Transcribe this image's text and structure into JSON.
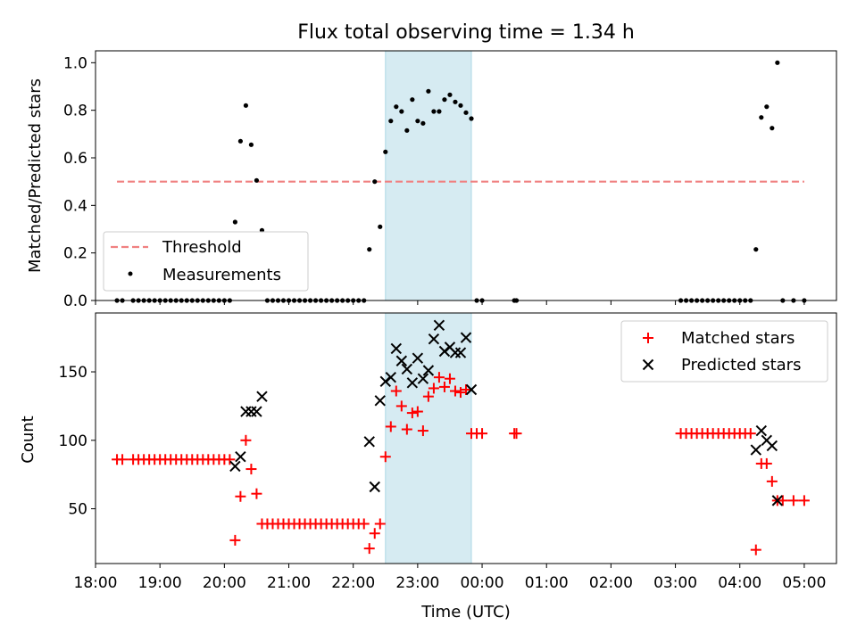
{
  "chart_data": [
    {
      "type": "scatter",
      "title": "Flux total observing time = 1.34 h",
      "xlabel": "",
      "ylabel": "Matched/Predicted stars",
      "xlim": [
        "18:00",
        "05:30"
      ],
      "ylim": [
        0,
        1.05
      ],
      "y_ticks": [
        "0.0",
        "0.2",
        "0.4",
        "0.6",
        "0.8",
        "1.0"
      ],
      "grid": false,
      "legend_position": "lower-left",
      "highlight_span": {
        "start": "22:30",
        "end": "23:50",
        "color": "#add8e6"
      },
      "threshold": {
        "name": "Threshold",
        "value": 0.5,
        "x_start": "18:20",
        "x_end": "05:00",
        "color": "#f08080"
      },
      "series": [
        {
          "name": "Measurements",
          "color": "#000000",
          "points": [
            [
              "18:20",
              0
            ],
            [
              "18:25",
              0
            ],
            [
              "18:35",
              0
            ],
            [
              "18:40",
              0
            ],
            [
              "18:45",
              0
            ],
            [
              "18:50",
              0
            ],
            [
              "18:55",
              0
            ],
            [
              "19:00",
              0
            ],
            [
              "19:05",
              0
            ],
            [
              "19:10",
              0
            ],
            [
              "19:15",
              0
            ],
            [
              "19:20",
              0
            ],
            [
              "19:25",
              0
            ],
            [
              "19:30",
              0
            ],
            [
              "19:35",
              0
            ],
            [
              "19:40",
              0
            ],
            [
              "19:45",
              0
            ],
            [
              "19:50",
              0
            ],
            [
              "19:55",
              0
            ],
            [
              "20:00",
              0
            ],
            [
              "20:05",
              0
            ],
            [
              "20:10",
              0.33
            ],
            [
              "20:15",
              0.67
            ],
            [
              "20:20",
              0.82
            ],
            [
              "20:25",
              0.655
            ],
            [
              "20:30",
              0.505
            ],
            [
              "20:35",
              0.295
            ],
            [
              "20:40",
              0
            ],
            [
              "20:45",
              0
            ],
            [
              "20:50",
              0
            ],
            [
              "20:55",
              0
            ],
            [
              "21:00",
              0
            ],
            [
              "21:05",
              0
            ],
            [
              "21:10",
              0
            ],
            [
              "21:15",
              0
            ],
            [
              "21:20",
              0
            ],
            [
              "21:25",
              0
            ],
            [
              "21:30",
              0
            ],
            [
              "21:35",
              0
            ],
            [
              "21:40",
              0
            ],
            [
              "21:45",
              0
            ],
            [
              "21:50",
              0
            ],
            [
              "21:55",
              0
            ],
            [
              "22:00",
              0
            ],
            [
              "22:05",
              0
            ],
            [
              "22:10",
              0
            ],
            [
              "22:15",
              0.215
            ],
            [
              "22:20",
              0.5
            ],
            [
              "22:25",
              0.31
            ],
            [
              "22:30",
              0.625
            ],
            [
              "22:35",
              0.755
            ],
            [
              "22:40",
              0.815
            ],
            [
              "22:45",
              0.795
            ],
            [
              "22:50",
              0.715
            ],
            [
              "22:55",
              0.845
            ],
            [
              "23:00",
              0.755
            ],
            [
              "23:05",
              0.745
            ],
            [
              "23:10",
              0.88
            ],
            [
              "23:15",
              0.795
            ],
            [
              "23:20",
              0.795
            ],
            [
              "23:25",
              0.845
            ],
            [
              "23:30",
              0.865
            ],
            [
              "23:35",
              0.835
            ],
            [
              "23:40",
              0.82
            ],
            [
              "23:45",
              0.79
            ],
            [
              "23:50",
              0.765
            ],
            [
              "23:55",
              0
            ],
            [
              "00:00",
              0
            ],
            [
              "00:30",
              0
            ],
            [
              "00:32",
              0
            ],
            [
              "03:05",
              0
            ],
            [
              "03:10",
              0
            ],
            [
              "03:15",
              0
            ],
            [
              "03:20",
              0
            ],
            [
              "03:25",
              0
            ],
            [
              "03:30",
              0
            ],
            [
              "03:35",
              0
            ],
            [
              "03:40",
              0
            ],
            [
              "03:45",
              0
            ],
            [
              "03:50",
              0
            ],
            [
              "03:55",
              0
            ],
            [
              "04:00",
              0
            ],
            [
              "04:05",
              0
            ],
            [
              "04:10",
              0
            ],
            [
              "04:15",
              0.215
            ],
            [
              "04:20",
              0.77
            ],
            [
              "04:25",
              0.815
            ],
            [
              "04:30",
              0.725
            ],
            [
              "04:35",
              1.0
            ],
            [
              "04:40",
              0
            ],
            [
              "04:50",
              0
            ],
            [
              "05:00",
              0
            ]
          ]
        }
      ]
    },
    {
      "type": "scatter",
      "title": "",
      "xlabel": "Time (UTC)",
      "ylabel": "Count",
      "xlim": [
        "18:00",
        "05:30"
      ],
      "ylim": [
        10,
        193
      ],
      "x_ticks": [
        "18:00",
        "19:00",
        "20:00",
        "21:00",
        "22:00",
        "23:00",
        "00:00",
        "01:00",
        "02:00",
        "03:00",
        "04:00",
        "05:00"
      ],
      "y_ticks": [
        "50",
        "100",
        "150"
      ],
      "grid": false,
      "legend_position": "top-right",
      "highlight_span": {
        "start": "22:30",
        "end": "23:50",
        "color": "#add8e6"
      },
      "series": [
        {
          "name": "Matched stars",
          "marker": "plus",
          "color": "#ff0000",
          "points": [
            [
              "18:20",
              86
            ],
            [
              "18:25",
              86
            ],
            [
              "18:35",
              86
            ],
            [
              "18:40",
              86
            ],
            [
              "18:45",
              86
            ],
            [
              "18:50",
              86
            ],
            [
              "18:55",
              86
            ],
            [
              "19:00",
              86
            ],
            [
              "19:05",
              86
            ],
            [
              "19:10",
              86
            ],
            [
              "19:15",
              86
            ],
            [
              "19:20",
              86
            ],
            [
              "19:25",
              86
            ],
            [
              "19:30",
              86
            ],
            [
              "19:35",
              86
            ],
            [
              "19:40",
              86
            ],
            [
              "19:45",
              86
            ],
            [
              "19:50",
              86
            ],
            [
              "19:55",
              86
            ],
            [
              "20:00",
              86
            ],
            [
              "20:05",
              86
            ],
            [
              "20:10",
              27
            ],
            [
              "20:15",
              59
            ],
            [
              "20:20",
              100
            ],
            [
              "20:25",
              79
            ],
            [
              "20:30",
              61
            ],
            [
              "20:35",
              39
            ],
            [
              "20:40",
              39
            ],
            [
              "20:45",
              39
            ],
            [
              "20:50",
              39
            ],
            [
              "20:55",
              39
            ],
            [
              "21:00",
              39
            ],
            [
              "21:05",
              39
            ],
            [
              "21:10",
              39
            ],
            [
              "21:15",
              39
            ],
            [
              "21:20",
              39
            ],
            [
              "21:25",
              39
            ],
            [
              "21:30",
              39
            ],
            [
              "21:35",
              39
            ],
            [
              "21:40",
              39
            ],
            [
              "21:45",
              39
            ],
            [
              "21:50",
              39
            ],
            [
              "21:55",
              39
            ],
            [
              "22:00",
              39
            ],
            [
              "22:05",
              39
            ],
            [
              "22:10",
              39
            ],
            [
              "22:15",
              21
            ],
            [
              "22:20",
              32
            ],
            [
              "22:25",
              39
            ],
            [
              "22:30",
              88
            ],
            [
              "22:35",
              110
            ],
            [
              "22:40",
              136
            ],
            [
              "22:45",
              125
            ],
            [
              "22:50",
              108
            ],
            [
              "22:55",
              120
            ],
            [
              "23:00",
              121
            ],
            [
              "23:05",
              107
            ],
            [
              "23:10",
              132
            ],
            [
              "23:15",
              138
            ],
            [
              "23:20",
              146
            ],
            [
              "23:25",
              139
            ],
            [
              "23:30",
              145
            ],
            [
              "23:35",
              136
            ],
            [
              "23:40",
              135
            ],
            [
              "23:45",
              137
            ],
            [
              "23:50",
              105
            ],
            [
              "23:55",
              105
            ],
            [
              "00:00",
              105
            ],
            [
              "00:30",
              105
            ],
            [
              "00:32",
              105
            ],
            [
              "03:05",
              105
            ],
            [
              "03:10",
              105
            ],
            [
              "03:15",
              105
            ],
            [
              "03:20",
              105
            ],
            [
              "03:25",
              105
            ],
            [
              "03:30",
              105
            ],
            [
              "03:35",
              105
            ],
            [
              "03:40",
              105
            ],
            [
              "03:45",
              105
            ],
            [
              "03:50",
              105
            ],
            [
              "03:55",
              105
            ],
            [
              "04:00",
              105
            ],
            [
              "04:05",
              105
            ],
            [
              "04:10",
              105
            ],
            [
              "04:15",
              20
            ],
            [
              "04:20",
              83
            ],
            [
              "04:25",
              83
            ],
            [
              "04:30",
              70
            ],
            [
              "04:35",
              56
            ],
            [
              "04:40",
              56
            ],
            [
              "04:50",
              56
            ],
            [
              "05:00",
              56
            ]
          ]
        },
        {
          "name": "Predicted stars",
          "marker": "x",
          "color": "#000000",
          "points": [
            [
              "20:10",
              81
            ],
            [
              "20:15",
              88
            ],
            [
              "20:20",
              121
            ],
            [
              "20:25",
              121
            ],
            [
              "20:30",
              121
            ],
            [
              "20:35",
              132
            ],
            [
              "22:15",
              99
            ],
            [
              "22:20",
              66
            ],
            [
              "22:25",
              129
            ],
            [
              "22:30",
              143
            ],
            [
              "22:35",
              146
            ],
            [
              "22:40",
              167
            ],
            [
              "22:45",
              158
            ],
            [
              "22:50",
              152
            ],
            [
              "22:55",
              142
            ],
            [
              "23:00",
              160
            ],
            [
              "23:05",
              145
            ],
            [
              "23:10",
              151
            ],
            [
              "23:15",
              174
            ],
            [
              "23:20",
              184
            ],
            [
              "23:25",
              165
            ],
            [
              "23:30",
              168
            ],
            [
              "23:35",
              164
            ],
            [
              "23:40",
              164
            ],
            [
              "23:45",
              175
            ],
            [
              "23:50",
              137
            ],
            [
              "04:15",
              93
            ],
            [
              "04:20",
              107
            ],
            [
              "04:25",
              100
            ],
            [
              "04:30",
              96
            ],
            [
              "04:35",
              56
            ]
          ]
        }
      ]
    }
  ]
}
